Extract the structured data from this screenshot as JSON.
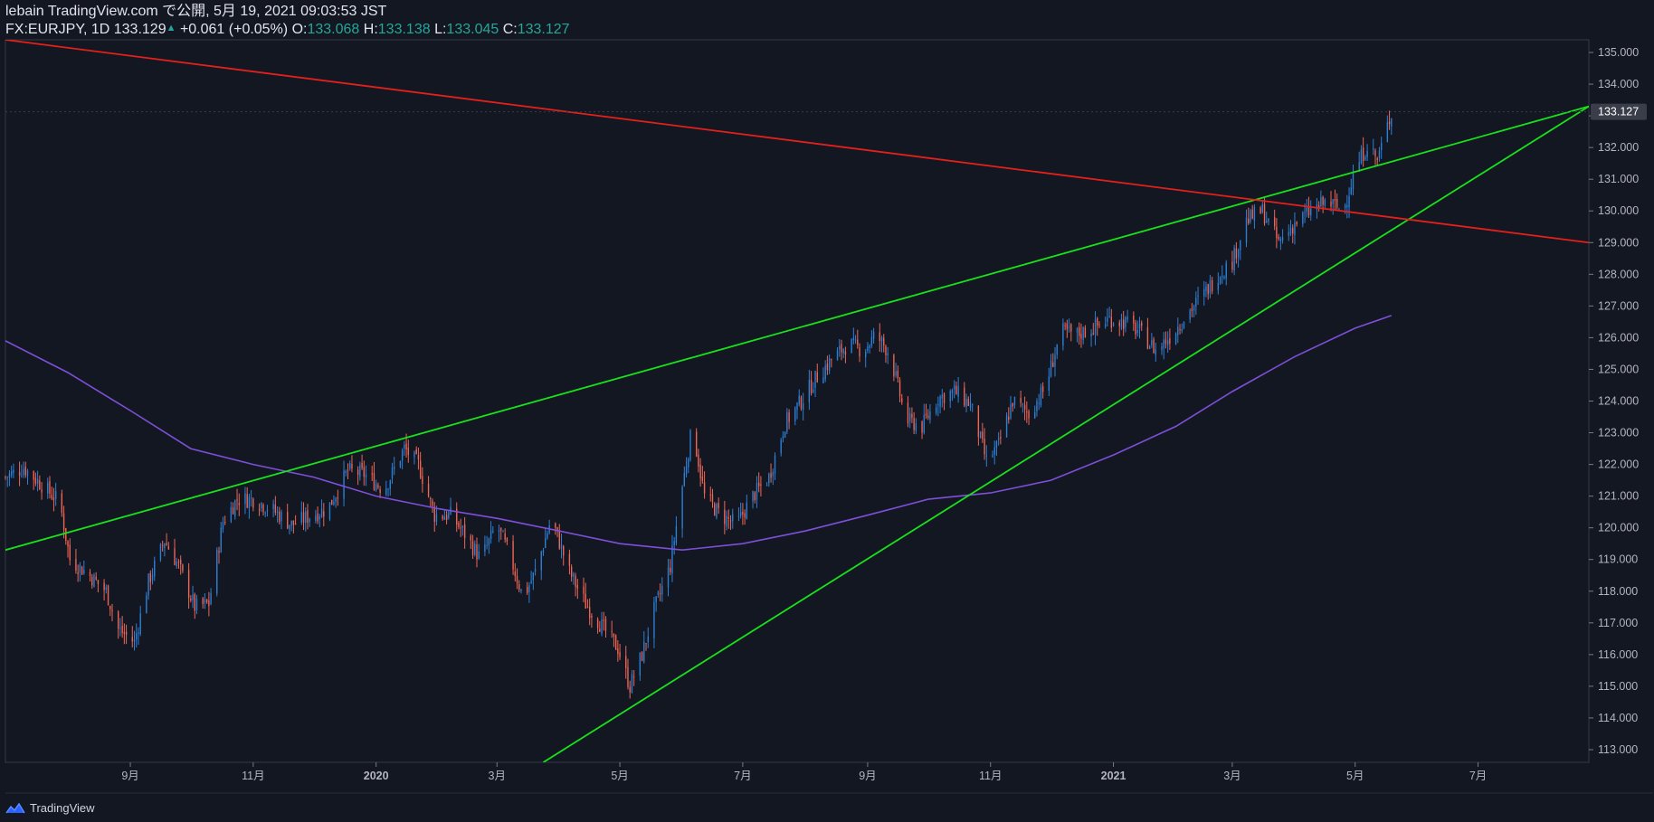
{
  "header": {
    "line1": "lebain TradingView.com で公開, 5月 19, 2021 09:03:53 JST",
    "symbol": "FX:EURJPY, 1D",
    "last": "133.129",
    "change": "+0.061 (+0.05%)",
    "o_label": "O:",
    "o_value": "133.068",
    "h_label": "H:",
    "h_value": "133.138",
    "l_label": "L:",
    "l_value": "133.045",
    "c_label": "C:",
    "c_value": "133.127"
  },
  "footer": {
    "brand": "TradingView"
  },
  "colors": {
    "background": "#131722",
    "up_candle": "#2d7fd4",
    "down_candle": "#ef6554",
    "ma_line": "#7e4fd8",
    "trend_green": "#19e11b",
    "trend_red": "#e3201b",
    "price_tag": "#3a3e4a"
  },
  "chart_data": {
    "type": "candlestick",
    "symbol": "FX:EURJPY",
    "interval": "1D",
    "ylim": [
      112.6,
      135.4
    ],
    "y_ticks": [
      "113.000",
      "114.000",
      "115.000",
      "116.000",
      "117.000",
      "118.000",
      "119.000",
      "120.000",
      "121.000",
      "122.000",
      "123.000",
      "124.000",
      "125.000",
      "126.000",
      "127.000",
      "128.000",
      "129.000",
      "130.000",
      "131.000",
      "132.000",
      "133.000",
      "134.000",
      "135.000"
    ],
    "x_ticks": [
      {
        "label": "9月",
        "date": "2019-09-01"
      },
      {
        "label": "11月",
        "date": "2019-11-01"
      },
      {
        "label": "2020",
        "date": "2020-01-01"
      },
      {
        "label": "3月",
        "date": "2020-03-01"
      },
      {
        "label": "5月",
        "date": "2020-05-01"
      },
      {
        "label": "7月",
        "date": "2020-07-01"
      },
      {
        "label": "9月",
        "date": "2020-09-01"
      },
      {
        "label": "11月",
        "date": "2020-11-01"
      },
      {
        "label": "2021",
        "date": "2021-01-01"
      },
      {
        "label": "3月",
        "date": "2021-03-01"
      },
      {
        "label": "5月",
        "date": "2021-05-01"
      },
      {
        "label": "7月",
        "date": "2021-07-01"
      }
    ],
    "x_start": "2019-07-01",
    "x_end": "2021-08-25",
    "last_price": 133.127,
    "last_price_label": "133.127",
    "price_path": [
      [
        "2019-07-01",
        121.6
      ],
      [
        "2019-07-10",
        121.9
      ],
      [
        "2019-07-20",
        121.3
      ],
      [
        "2019-07-28",
        120.8
      ],
      [
        "2019-08-02",
        119.0
      ],
      [
        "2019-08-10",
        118.6
      ],
      [
        "2019-08-20",
        118.0
      ],
      [
        "2019-08-26",
        116.8
      ],
      [
        "2019-09-03",
        116.4
      ],
      [
        "2019-09-10",
        118.3
      ],
      [
        "2019-09-18",
        119.6
      ],
      [
        "2019-09-25",
        118.8
      ],
      [
        "2019-10-03",
        117.5
      ],
      [
        "2019-10-10",
        117.6
      ],
      [
        "2019-10-17",
        120.2
      ],
      [
        "2019-10-24",
        120.9
      ],
      [
        "2019-11-01",
        120.9
      ],
      [
        "2019-11-10",
        120.6
      ],
      [
        "2019-11-20",
        120.1
      ],
      [
        "2019-11-30",
        120.4
      ],
      [
        "2019-12-08",
        120.6
      ],
      [
        "2019-12-18",
        121.8
      ],
      [
        "2019-12-26",
        121.7
      ],
      [
        "2020-01-05",
        121.2
      ],
      [
        "2020-01-15",
        122.5
      ],
      [
        "2020-01-22",
        122.0
      ],
      [
        "2020-01-30",
        120.4
      ],
      [
        "2020-02-07",
        120.4
      ],
      [
        "2020-02-14",
        119.8
      ],
      [
        "2020-02-22",
        119.0
      ],
      [
        "2020-03-01",
        120.1
      ],
      [
        "2020-03-08",
        119.0
      ],
      [
        "2020-03-14",
        117.8
      ],
      [
        "2020-03-20",
        118.6
      ],
      [
        "2020-03-28",
        120.3
      ],
      [
        "2020-04-06",
        118.6
      ],
      [
        "2020-04-14",
        117.6
      ],
      [
        "2020-04-22",
        116.9
      ],
      [
        "2020-04-30",
        116.2
      ],
      [
        "2020-05-06",
        115.0
      ],
      [
        "2020-05-12",
        116.0
      ],
      [
        "2020-05-18",
        117.4
      ],
      [
        "2020-05-26",
        118.8
      ],
      [
        "2020-06-01",
        121.3
      ],
      [
        "2020-06-06",
        123.2
      ],
      [
        "2020-06-12",
        121.0
      ],
      [
        "2020-06-20",
        120.4
      ],
      [
        "2020-06-28",
        120.1
      ],
      [
        "2020-07-06",
        121.0
      ],
      [
        "2020-07-14",
        121.6
      ],
      [
        "2020-07-22",
        123.3
      ],
      [
        "2020-07-30",
        124.0
      ],
      [
        "2020-08-06",
        124.7
      ],
      [
        "2020-08-14",
        125.3
      ],
      [
        "2020-08-22",
        125.8
      ],
      [
        "2020-08-30",
        125.6
      ],
      [
        "2020-09-05",
        126.1
      ],
      [
        "2020-09-12",
        125.5
      ],
      [
        "2020-09-20",
        123.4
      ],
      [
        "2020-09-28",
        123.2
      ],
      [
        "2020-10-06",
        124.1
      ],
      [
        "2020-10-14",
        124.3
      ],
      [
        "2020-10-22",
        123.9
      ],
      [
        "2020-10-30",
        122.1
      ],
      [
        "2020-11-05",
        122.6
      ],
      [
        "2020-11-12",
        124.0
      ],
      [
        "2020-11-20",
        123.6
      ],
      [
        "2020-11-28",
        124.4
      ],
      [
        "2020-12-06",
        126.2
      ],
      [
        "2020-12-14",
        126.1
      ],
      [
        "2020-12-22",
        126.3
      ],
      [
        "2020-12-30",
        126.6
      ],
      [
        "2021-01-06",
        126.5
      ],
      [
        "2021-01-14",
        126.2
      ],
      [
        "2021-01-22",
        125.6
      ],
      [
        "2021-01-30",
        126.1
      ],
      [
        "2021-02-07",
        126.8
      ],
      [
        "2021-02-14",
        127.3
      ],
      [
        "2021-02-22",
        128.0
      ],
      [
        "2021-03-01",
        128.4
      ],
      [
        "2021-03-08",
        129.7
      ],
      [
        "2021-03-16",
        130.0
      ],
      [
        "2021-03-24",
        129.0
      ],
      [
        "2021-04-01",
        129.6
      ],
      [
        "2021-04-09",
        130.0
      ],
      [
        "2021-04-17",
        130.3
      ],
      [
        "2021-04-25",
        130.0
      ],
      [
        "2021-05-01",
        131.3
      ],
      [
        "2021-05-07",
        132.1
      ],
      [
        "2021-05-12",
        131.6
      ],
      [
        "2021-05-19",
        133.1
      ]
    ],
    "moving_average": [
      [
        "2019-07-01",
        125.9
      ],
      [
        "2019-08-01",
        124.9
      ],
      [
        "2019-09-01",
        123.7
      ],
      [
        "2019-10-01",
        122.5
      ],
      [
        "2019-11-01",
        122.0
      ],
      [
        "2019-12-01",
        121.6
      ],
      [
        "2020-01-01",
        121.0
      ],
      [
        "2020-02-01",
        120.6
      ],
      [
        "2020-03-01",
        120.3
      ],
      [
        "2020-04-01",
        119.9
      ],
      [
        "2020-05-01",
        119.5
      ],
      [
        "2020-06-01",
        119.3
      ],
      [
        "2020-07-01",
        119.5
      ],
      [
        "2020-08-01",
        119.9
      ],
      [
        "2020-09-01",
        120.4
      ],
      [
        "2020-10-01",
        120.9
      ],
      [
        "2020-11-01",
        121.1
      ],
      [
        "2020-12-01",
        121.5
      ],
      [
        "2021-01-01",
        122.3
      ],
      [
        "2021-02-01",
        123.2
      ],
      [
        "2021-03-01",
        124.3
      ],
      [
        "2021-04-01",
        125.4
      ],
      [
        "2021-05-01",
        126.3
      ],
      [
        "2021-05-19",
        126.7
      ]
    ],
    "trend_lines": [
      {
        "color": "green",
        "from": [
          "2019-07-01",
          119.3
        ],
        "to": [
          "2021-08-25",
          133.3
        ]
      },
      {
        "color": "green",
        "from": [
          "2020-03-24",
          112.6
        ],
        "to": [
          "2021-08-25",
          133.3
        ]
      },
      {
        "color": "red",
        "from": [
          "2019-07-01",
          135.4
        ],
        "to": [
          "2021-08-25",
          129.0
        ]
      }
    ]
  }
}
